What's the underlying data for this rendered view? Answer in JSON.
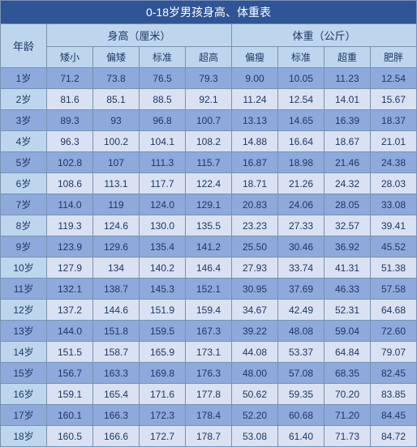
{
  "title": "0-18岁男孩身高、体重表",
  "headers": {
    "age": "年龄",
    "height": "身高（厘米）",
    "weight": "体重（公斤）",
    "height_cols": [
      "矮小",
      "偏矮",
      "标准",
      "超高"
    ],
    "weight_cols": [
      "偏瘦",
      "标准",
      "超重",
      "肥胖"
    ]
  },
  "rows": [
    {
      "age": "1岁",
      "h": [
        "71.2",
        "73.8",
        "76.5",
        "79.3"
      ],
      "w": [
        "9.00",
        "10.05",
        "11.23",
        "12.54"
      ]
    },
    {
      "age": "2岁",
      "h": [
        "81.6",
        "85.1",
        "88.5",
        "92.1"
      ],
      "w": [
        "11.24",
        "12.54",
        "14.01",
        "15.67"
      ]
    },
    {
      "age": "3岁",
      "h": [
        "89.3",
        "93",
        "96.8",
        "100.7"
      ],
      "w": [
        "13.13",
        "14.65",
        "16.39",
        "18.37"
      ]
    },
    {
      "age": "4岁",
      "h": [
        "96.3",
        "100.2",
        "104.1",
        "108.2"
      ],
      "w": [
        "14.88",
        "16.64",
        "18.67",
        "21.01"
      ]
    },
    {
      "age": "5岁",
      "h": [
        "102.8",
        "107",
        "111.3",
        "115.7"
      ],
      "w": [
        "16.87",
        "18.98",
        "21.46",
        "24.38"
      ]
    },
    {
      "age": "6岁",
      "h": [
        "108.6",
        "113.1",
        "117.7",
        "122.4"
      ],
      "w": [
        "18.71",
        "21.26",
        "24.32",
        "28.03"
      ]
    },
    {
      "age": "7岁",
      "h": [
        "114.0",
        "119",
        "124.0",
        "129.1"
      ],
      "w": [
        "20.83",
        "24.06",
        "28.05",
        "33.08"
      ]
    },
    {
      "age": "8岁",
      "h": [
        "119.3",
        "124.6",
        "130.0",
        "135.5"
      ],
      "w": [
        "23.23",
        "27.33",
        "32.57",
        "39.41"
      ]
    },
    {
      "age": "9岁",
      "h": [
        "123.9",
        "129.6",
        "135.4",
        "141.2"
      ],
      "w": [
        "25.50",
        "30.46",
        "36.92",
        "45.52"
      ]
    },
    {
      "age": "10岁",
      "h": [
        "127.9",
        "134",
        "140.2",
        "146.4"
      ],
      "w": [
        "27.93",
        "33.74",
        "41.31",
        "51.38"
      ]
    },
    {
      "age": "11岁",
      "h": [
        "132.1",
        "138.7",
        "145.3",
        "152.1"
      ],
      "w": [
        "30.95",
        "37.69",
        "46.33",
        "57.58"
      ]
    },
    {
      "age": "12岁",
      "h": [
        "137.2",
        "144.6",
        "151.9",
        "159.4"
      ],
      "w": [
        "34.67",
        "42.49",
        "52.31",
        "64.68"
      ]
    },
    {
      "age": "13岁",
      "h": [
        "144.0",
        "151.8",
        "159.5",
        "167.3"
      ],
      "w": [
        "39.22",
        "48.08",
        "59.04",
        "72.60"
      ]
    },
    {
      "age": "14岁",
      "h": [
        "151.5",
        "158.7",
        "165.9",
        "173.1"
      ],
      "w": [
        "44.08",
        "53.37",
        "64.84",
        "79.07"
      ]
    },
    {
      "age": "15岁",
      "h": [
        "156.7",
        "163.3",
        "169.8",
        "176.3"
      ],
      "w": [
        "48.00",
        "57.08",
        "68.35",
        "82.45"
      ]
    },
    {
      "age": "16岁",
      "h": [
        "159.1",
        "165.4",
        "171.6",
        "177.8"
      ],
      "w": [
        "50.62",
        "59.35",
        "70.20",
        "83.85"
      ]
    },
    {
      "age": "17岁",
      "h": [
        "160.1",
        "166.3",
        "172.3",
        "178.4"
      ],
      "w": [
        "52.20",
        "60.68",
        "71.20",
        "84.45"
      ]
    },
    {
      "age": "18岁",
      "h": [
        "160.5",
        "166.6",
        "172.7",
        "178.7"
      ],
      "w": [
        "53.08",
        "61.40",
        "71.73",
        "84.72"
      ]
    }
  ],
  "colors": {
    "title_bg": "#2f5597",
    "header_bg": "#bdd6ee",
    "row_odd_bg": "#8ea9db",
    "row_even_bg": "#d9e1f2",
    "border": "#7a92b0",
    "text_dark": "#1f3864",
    "text_light": "#ffffff"
  }
}
